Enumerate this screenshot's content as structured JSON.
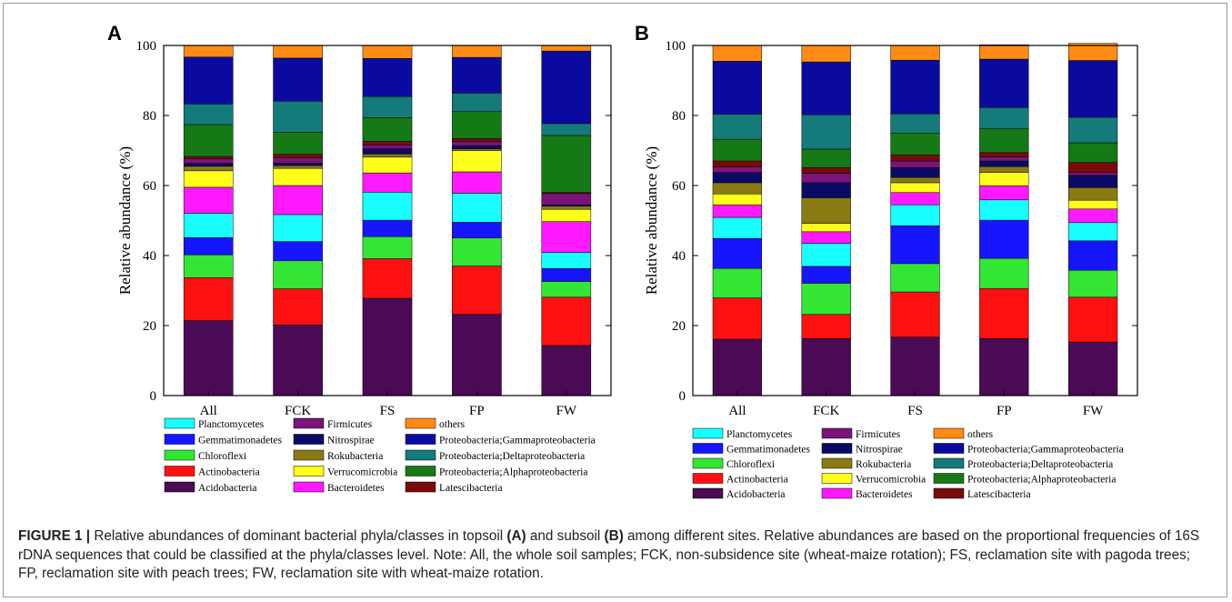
{
  "figure": {
    "caption_label": "FIGURE 1 |",
    "caption_part1": " Relative abundances of dominant bacterial phyla/classes in topsoil ",
    "caption_bold1": "(A)",
    "caption_part2": " and subsoil ",
    "caption_bold2": "(B)",
    "caption_part3": " among different sites. Relative abundances are based on the proportional frequencies of 16S rDNA sequences that could be classified at the phyla/classes level. Note: All, the whole soil samples; FCK, non-subsidence site (wheat-maize rotation); FS, reclamation site with pagoda trees; FP, reclamation site with peach trees; FW, reclamation site with wheat-maize rotation."
  },
  "chart_data": [
    {
      "type": "bar",
      "stacked": true,
      "panel_label": "A",
      "ylabel": "Relative abundance (%)",
      "xlabel": "",
      "ylim": [
        0,
        100
      ],
      "yticks": [
        0,
        20,
        40,
        60,
        80,
        100
      ],
      "categories": [
        "All",
        "FCK",
        "FS",
        "FP",
        "FW"
      ],
      "series": [
        {
          "name": "Acidobacteria",
          "values": [
            21.4,
            20.2,
            27.8,
            23.2,
            14.3
          ]
        },
        {
          "name": "Actinobacteria",
          "values": [
            12.3,
            10.3,
            11.3,
            13.8,
            13.8
          ]
        },
        {
          "name": "Chloroflexi",
          "values": [
            6.5,
            8.0,
            6.3,
            8.0,
            4.5
          ]
        },
        {
          "name": "Gemmatimonadetes",
          "values": [
            4.9,
            5.5,
            4.7,
            4.5,
            3.7
          ]
        },
        {
          "name": "Planctomycetes",
          "values": [
            7.0,
            7.7,
            8.0,
            8.3,
            4.6
          ]
        },
        {
          "name": "Bacteroidetes",
          "values": [
            7.4,
            8.3,
            5.5,
            6.1,
            8.8
          ]
        },
        {
          "name": "Verrucomicrobia",
          "values": [
            4.7,
            4.9,
            4.5,
            6.1,
            3.5
          ]
        },
        {
          "name": "Rokubacteria",
          "values": [
            1.3,
            0.8,
            0.9,
            0.5,
            0.9
          ]
        },
        {
          "name": "Nitrospirae",
          "values": [
            0.8,
            0.7,
            1.5,
            0.9,
            0.4
          ]
        },
        {
          "name": "Firmicutes",
          "values": [
            1.3,
            1.5,
            1.1,
            1.1,
            3.2
          ]
        },
        {
          "name": "Latescibacteria",
          "values": [
            0.7,
            1.0,
            1.0,
            0.9,
            0.3
          ]
        },
        {
          "name": "Proteobacteria;Alphaproteobacteria",
          "values": [
            9.1,
            6.3,
            6.8,
            7.7,
            16.3
          ]
        },
        {
          "name": "Proteobacteria;Deltaproteobacteria",
          "values": [
            5.9,
            8.9,
            6.0,
            5.3,
            3.4
          ]
        },
        {
          "name": "Proteobacteria;Gammaproteobacteria",
          "values": [
            13.4,
            12.3,
            10.9,
            10.2,
            20.7
          ]
        },
        {
          "name": "others",
          "values": [
            3.3,
            3.6,
            3.7,
            3.4,
            1.6
          ]
        }
      ]
    },
    {
      "type": "bar",
      "stacked": true,
      "panel_label": "B",
      "ylabel": "Relative abundance (%)",
      "xlabel": "",
      "ylim": [
        0,
        100
      ],
      "yticks": [
        0,
        20,
        40,
        60,
        80,
        100
      ],
      "categories": [
        "All",
        "FCK",
        "FS",
        "FP",
        "FW"
      ],
      "series": [
        {
          "name": "Acidobacteria",
          "values": [
            16.1,
            16.3,
            16.7,
            16.3,
            15.3
          ]
        },
        {
          "name": "Actinobacteria",
          "values": [
            11.8,
            6.9,
            12.9,
            14.3,
            12.8
          ]
        },
        {
          "name": "Chloroflexi",
          "values": [
            8.4,
            8.9,
            8.1,
            8.6,
            7.7
          ]
        },
        {
          "name": "Gemmatimonadetes",
          "values": [
            8.6,
            4.8,
            10.8,
            10.9,
            8.4
          ]
        },
        {
          "name": "Planctomycetes",
          "values": [
            6.0,
            6.6,
            6.0,
            5.8,
            5.2
          ]
        },
        {
          "name": "Bacteroidetes",
          "values": [
            3.6,
            3.3,
            3.5,
            4.0,
            3.9
          ]
        },
        {
          "name": "Verrucomicrobia",
          "values": [
            3.1,
            2.4,
            2.8,
            3.8,
            2.5
          ]
        },
        {
          "name": "Rokubacteria",
          "values": [
            3.2,
            7.3,
            1.5,
            1.7,
            3.6
          ]
        },
        {
          "name": "Nitrospirae",
          "values": [
            2.9,
            4.3,
            2.8,
            1.6,
            3.5
          ]
        },
        {
          "name": "Firmicutes",
          "values": [
            1.6,
            2.7,
            1.9,
            1.2,
            0.9
          ]
        },
        {
          "name": "Latescibacteria",
          "values": [
            1.7,
            1.6,
            1.7,
            1.2,
            2.8
          ]
        },
        {
          "name": "Proteobacteria;Alphaproteobacteria",
          "values": [
            6.2,
            5.3,
            6.3,
            6.8,
            5.6
          ]
        },
        {
          "name": "Proteobacteria;Deltaproteobacteria",
          "values": [
            7.2,
            9.8,
            5.5,
            6.1,
            7.3
          ]
        },
        {
          "name": "Proteobacteria;Gammaproteobacteria",
          "values": [
            15.1,
            15.1,
            15.3,
            13.8,
            16.2
          ]
        },
        {
          "name": "others",
          "values": [
            4.5,
            4.7,
            4.2,
            4.1,
            4.9
          ]
        }
      ]
    }
  ],
  "legend_columns": [
    [
      "Planctomycetes",
      "Gemmatimonadetes",
      "Chloroflexi",
      "Actinobacteria",
      "Acidobacteria"
    ],
    [
      "Firmicutes",
      "Nitrospirae",
      "Rokubacteria",
      "Verrucomicrobia",
      "Bacteroidetes"
    ],
    [
      "others",
      "Proteobacteria;Gammaproteobacteria",
      "Proteobacteria;Deltaproteobacteria",
      "Proteobacteria;Alphaproteobacteria",
      "Latescibacteria"
    ]
  ],
  "colors": {
    "Acidobacteria": "#4a0a55",
    "Actinobacteria": "#ff1010",
    "Chloroflexi": "#33e633",
    "Gemmatimonadetes": "#1515ff",
    "Planctomycetes": "#19ffff",
    "Bacteroidetes": "#ff19ff",
    "Verrucomicrobia": "#ffff19",
    "Rokubacteria": "#8a7a14",
    "Nitrospirae": "#0a0a66",
    "Firmicutes": "#7a147a",
    "Latescibacteria": "#7a0a0a",
    "Proteobacteria;Alphaproteobacteria": "#157a15",
    "Proteobacteria;Deltaproteobacteria": "#157a7a",
    "Proteobacteria;Gammaproteobacteria": "#0a0aa0",
    "others": "#ff8a14"
  }
}
